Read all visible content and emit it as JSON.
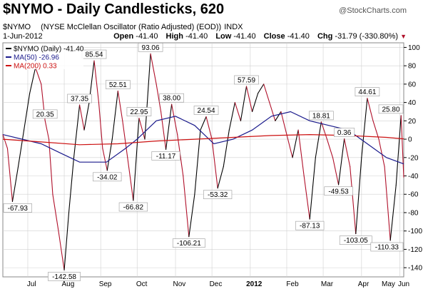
{
  "header": {
    "title": "$NYMO - Daily Candlesticks, 620",
    "brand": "@StockCharts.com",
    "description": "(NYSE McClellan Oscillator (Ratio Adjusted) (EOD))",
    "exchange": "INDX",
    "symbol_small": "$NYMO",
    "date": "1-Jun-2012",
    "open_label": "Open",
    "open": "-41.40",
    "high_label": "High",
    "high": "-41.40",
    "low_label": "Low",
    "low": "-41.40",
    "close_label": "Close",
    "close": "-41.40",
    "chg_label": "Chg",
    "chg": "-31.79 (-330.80%)",
    "chg_marker": "▼"
  },
  "legend": [
    {
      "label": "$NYMO (Daily) -41.40",
      "color": "#000000"
    },
    {
      "label": "MA(50) -26.96",
      "color": "#1a1a8c"
    },
    {
      "label": "MA(200) 0.33",
      "color": "#cc1111"
    }
  ],
  "colors": {
    "up": "#000000",
    "down": "#b0102a",
    "ma50": "#1a1a8c",
    "ma200": "#cc1111",
    "grid": "#d0d0d0"
  },
  "chart_data": {
    "type": "line",
    "title": "$NYMO - Daily Candlesticks, 620",
    "ylim": [
      -150,
      105
    ],
    "yticks": [
      100,
      80,
      60,
      40,
      20,
      0,
      -20,
      -40,
      -60,
      -80,
      -100,
      -120,
      -140
    ],
    "x_range": [
      0,
      10.45
    ],
    "month_positions": [
      0.65,
      1.6,
      2.55,
      3.5,
      4.5,
      5.45,
      6.45,
      7.4,
      8.35,
      9.35,
      10.35
    ],
    "xticks": [
      "Jul",
      "Aug",
      "Sep",
      "Oct",
      "Nov",
      "Dec",
      "2012",
      "Feb",
      "Mar",
      "Apr",
      "May",
      "Jun"
    ],
    "xtick_positions": [
      0.75,
      1.7,
      2.67,
      3.62,
      4.6,
      5.55,
      6.55,
      7.55,
      8.45,
      9.4,
      10.05,
      10.45
    ],
    "series": [
      {
        "name": "$NYMO (Daily)",
        "x": [
          0,
          0.12,
          0.25,
          0.4,
          0.55,
          0.7,
          0.85,
          1.0,
          1.1,
          1.2,
          1.3,
          1.45,
          1.6,
          1.72,
          1.85,
          2.0,
          2.12,
          2.25,
          2.38,
          2.5,
          2.6,
          2.72,
          2.85,
          3.0,
          3.12,
          3.25,
          3.4,
          3.55,
          3.7,
          3.85,
          4.0,
          4.12,
          4.25,
          4.4,
          4.55,
          4.7,
          4.85,
          5.0,
          5.15,
          5.3,
          5.45,
          5.6,
          5.75,
          5.9,
          6.05,
          6.2,
          6.35,
          6.5,
          6.65,
          6.8,
          6.95,
          7.1,
          7.25,
          7.4,
          7.55,
          7.7,
          7.85,
          8.0,
          8.15,
          8.3,
          8.45,
          8.6,
          8.75,
          8.9,
          9.05,
          9.2,
          9.35,
          9.5,
          9.65,
          9.8,
          9.95,
          10.1,
          10.25,
          10.38,
          10.45
        ],
        "values": [
          5,
          -10,
          -67.93,
          -30,
          10,
          50,
          78,
          60,
          20.35,
          0,
          -60,
          -100,
          -142.58,
          -80,
          -20,
          37.35,
          10,
          40,
          85.54,
          40,
          -10,
          -34.02,
          0,
          52.51,
          20,
          -20,
          -66.82,
          22.95,
          0,
          93.06,
          60,
          30,
          -11.17,
          38.0,
          5,
          -40,
          -106.21,
          -60,
          10,
          24.54,
          0,
          -53.32,
          -30,
          10,
          40,
          20,
          57.59,
          30,
          50,
          60,
          40,
          20,
          30,
          5,
          -20,
          10,
          -40,
          -87.13,
          -20,
          18.81,
          0,
          -20,
          -49.53,
          0.36,
          -30,
          -103.05,
          -20,
          44.61,
          20,
          0,
          -30,
          -110.33,
          -50,
          25.8,
          -41.4
        ]
      },
      {
        "name": "MA(50)",
        "x": [
          0,
          1.0,
          1.5,
          2.0,
          2.7,
          3.2,
          3.5,
          4.0,
          4.5,
          5.0,
          5.5,
          6.0,
          6.5,
          7.0,
          7.5,
          8.0,
          8.5,
          9.0,
          9.5,
          10.0,
          10.45
        ],
        "values": [
          5,
          -5,
          -15,
          -25,
          -25,
          -10,
          0,
          20,
          25,
          15,
          -5,
          0,
          10,
          25,
          30,
          20,
          15,
          10,
          -5,
          -20,
          -26.96
        ]
      },
      {
        "name": "MA(200)",
        "x": [
          0,
          1.0,
          2.0,
          3.0,
          4.0,
          5.0,
          6.0,
          7.0,
          8.0,
          9.0,
          10.0,
          10.45
        ],
        "values": [
          0,
          -3,
          -6,
          -5,
          -2,
          0,
          2,
          4,
          5,
          4,
          2,
          0.33
        ]
      }
    ],
    "annotations": [
      {
        "text": "-67.93",
        "x": 0.25,
        "y": -67.93
      },
      {
        "text": "20.35",
        "x": 1.1,
        "y": 20.35
      },
      {
        "text": "-142.58",
        "x": 1.6,
        "y": -142.58
      },
      {
        "text": "37.35",
        "x": 2.0,
        "y": 37.35
      },
      {
        "text": "85.54",
        "x": 2.38,
        "y": 85.54
      },
      {
        "text": "-34.02",
        "x": 2.72,
        "y": -34.02
      },
      {
        "text": "52.51",
        "x": 3.0,
        "y": 52.51
      },
      {
        "text": "-66.82",
        "x": 3.4,
        "y": -66.82
      },
      {
        "text": "22.95",
        "x": 3.55,
        "y": 22.95
      },
      {
        "text": "93.06",
        "x": 3.85,
        "y": 93.06
      },
      {
        "text": "-11.17",
        "x": 4.25,
        "y": -11.17
      },
      {
        "text": "38.00",
        "x": 4.4,
        "y": 38.0
      },
      {
        "text": "-106.21",
        "x": 4.85,
        "y": -106.21
      },
      {
        "text": "24.54",
        "x": 5.3,
        "y": 24.54
      },
      {
        "text": "-53.32",
        "x": 5.6,
        "y": -53.32
      },
      {
        "text": "57.59",
        "x": 6.35,
        "y": 57.59
      },
      {
        "text": "-87.13",
        "x": 8.0,
        "y": -87.13
      },
      {
        "text": "18.81",
        "x": 8.3,
        "y": 18.81
      },
      {
        "text": "-49.53",
        "x": 8.75,
        "y": -49.53
      },
      {
        "text": "0.36",
        "x": 8.9,
        "y": 0.36
      },
      {
        "text": "-103.05",
        "x": 9.2,
        "y": -103.05
      },
      {
        "text": "44.61",
        "x": 9.5,
        "y": 44.61
      },
      {
        "text": "-110.33",
        "x": 10.1,
        "y": -110.33
      },
      {
        "text": "25.80",
        "x": 10.38,
        "y": 25.8
      }
    ]
  }
}
